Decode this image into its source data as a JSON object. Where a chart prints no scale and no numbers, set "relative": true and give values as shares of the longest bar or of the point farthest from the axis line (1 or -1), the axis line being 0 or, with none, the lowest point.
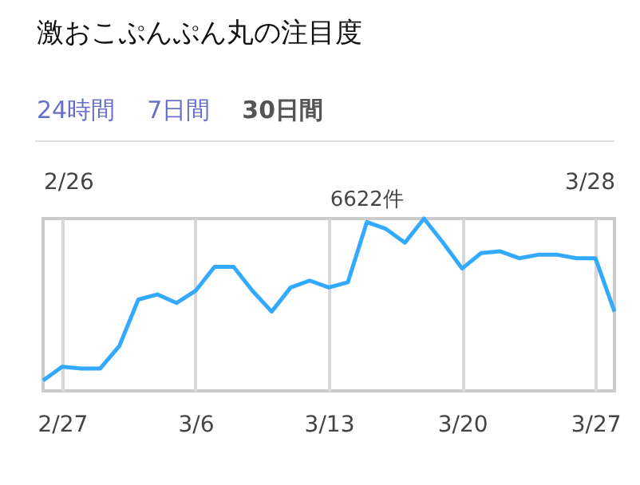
{
  "chart_data": {
    "type": "line",
    "title": "激おこぷんぷん丸の注目度",
    "relative": true,
    "x": [
      "--02-26",
      "--02-27",
      "--02-28",
      "--03-01",
      "--03-02",
      "--03-03",
      "--03-04",
      "--03-05",
      "--03-06",
      "--03-07",
      "--03-08",
      "--03-09",
      "--03-10",
      "--03-11",
      "--03-12",
      "--03-13",
      "--03-14",
      "--03-15",
      "--03-16",
      "--03-17",
      "--03-18",
      "--03-19",
      "--03-20",
      "--03-21",
      "--03-22",
      "--03-23",
      "--03-24",
      "--03-25",
      "--03-26",
      "--03-27",
      "--03-28"
    ],
    "series": [
      {
        "color": "#33aaff",
        "values": [
          0.06,
          0.14,
          0.13,
          0.13,
          0.26,
          0.53,
          0.56,
          0.51,
          0.58,
          0.72,
          0.72,
          0.58,
          0.46,
          0.6,
          0.64,
          0.6,
          0.63,
          0.98,
          0.94,
          0.86,
          1,
          0.86,
          0.71,
          0.8,
          0.81,
          0.77,
          0.79,
          0.79,
          0.77,
          0.77,
          0.46
        ]
      }
    ],
    "xlim": [
      "--02-26",
      "--03-28"
    ],
    "xticks": [
      {
        "value": "--02-27",
        "label": "2/27"
      },
      {
        "value": "--03-06",
        "label": "3/6"
      },
      {
        "value": "--03-13",
        "label": "3/13"
      },
      {
        "value": "--03-20",
        "label": "3/20"
      },
      {
        "value": "--03-27",
        "label": "3/27"
      }
    ],
    "x2lim": [
      "--02-26",
      "--03-28"
    ],
    "x2ticks": [
      {
        "value": "--02-26",
        "label": "2/26"
      },
      {
        "value": "--03-28",
        "label": "3/28"
      }
    ],
    "grid": "x",
    "annotations": [
      "24時間",
      "7日間",
      "30日間",
      {
        "text": "6622件",
        "x": "--03-15",
        "y": 0.98
      }
    ]
  }
}
